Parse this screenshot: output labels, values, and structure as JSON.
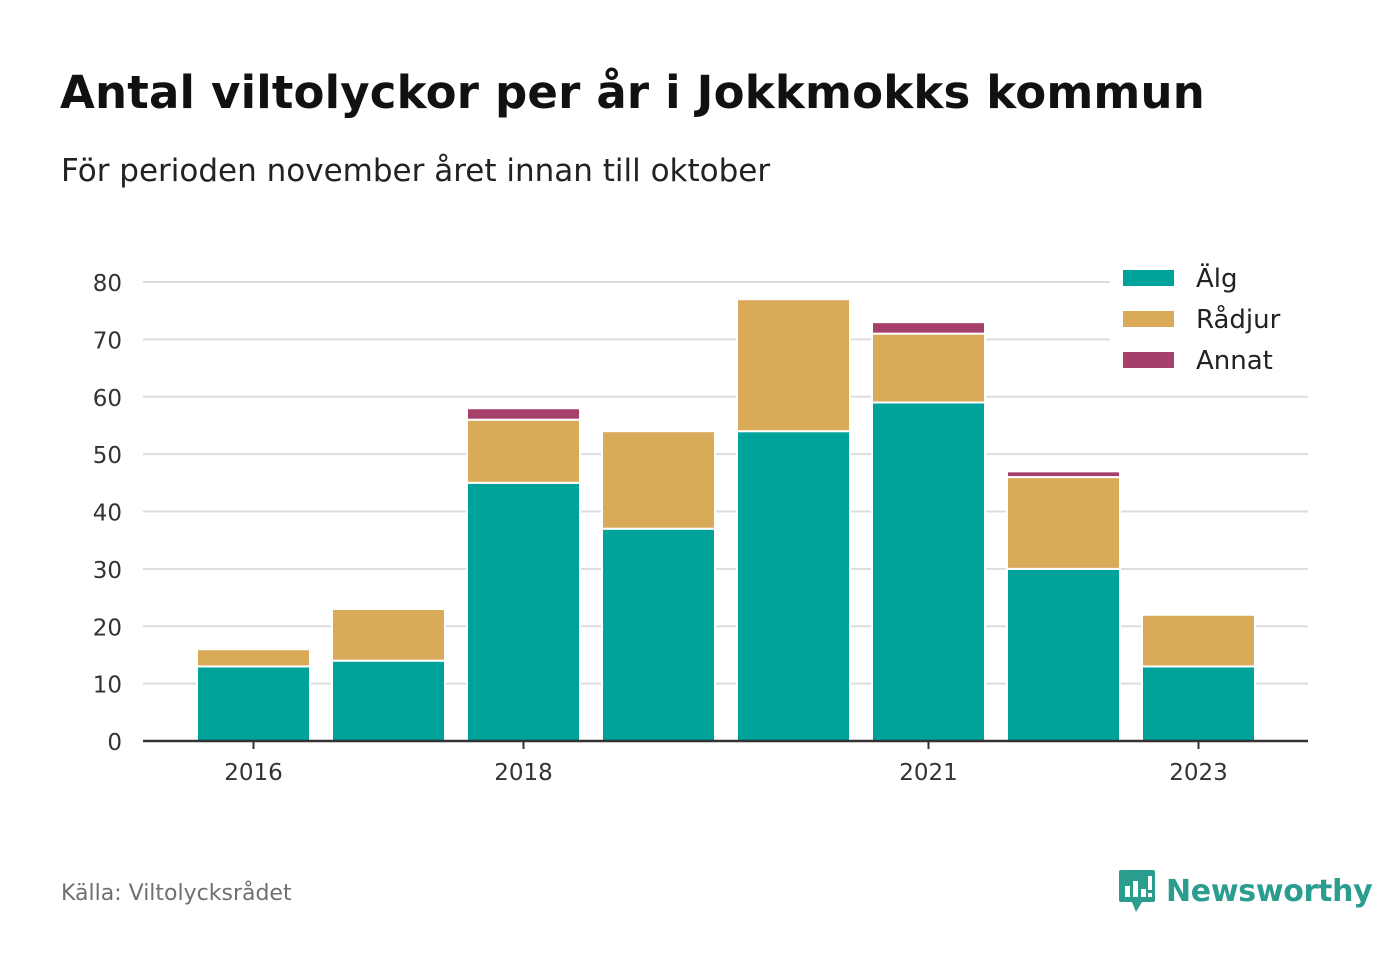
{
  "header": {
    "title": "Antal viltolyckor per år i Jokkmokks kommun",
    "subtitle": "För perioden november året innan till oktober"
  },
  "footer": {
    "source": "Källa: Viltolycksrådet",
    "brand": "Newsworthy",
    "brand_icon": "newsworthy-logo-icon"
  },
  "colors": {
    "alg": "#00a39a",
    "radjur": "#d9ab59",
    "annat": "#a6406a",
    "grid": "#dddddd",
    "axis": "#333333",
    "brand": "#2a9d8f"
  },
  "chart_data": {
    "type": "bar",
    "stacked": true,
    "categories": [
      "2016",
      "2017",
      "2018",
      "2019",
      "2020",
      "2021",
      "2022",
      "2023"
    ],
    "tick_labels": [
      "2016",
      "",
      "2018",
      "",
      "",
      "2021",
      "",
      "2023"
    ],
    "series": [
      {
        "name": "Älg",
        "color": "#00a39a",
        "values": [
          13,
          14,
          45,
          37,
          54,
          59,
          30,
          13
        ]
      },
      {
        "name": "Rådjur",
        "color": "#d9ab59",
        "values": [
          3,
          9,
          11,
          17,
          23,
          12,
          16,
          9
        ]
      },
      {
        "name": "Annat",
        "color": "#a6406a",
        "values": [
          0,
          0,
          2,
          0,
          0,
          2,
          1,
          0
        ]
      }
    ],
    "ylim": [
      0,
      80
    ],
    "yticks": [
      0,
      10,
      20,
      30,
      40,
      50,
      60,
      70,
      80
    ],
    "xlabel": "",
    "ylabel": "",
    "grid": true,
    "legend_position": "top-right"
  }
}
